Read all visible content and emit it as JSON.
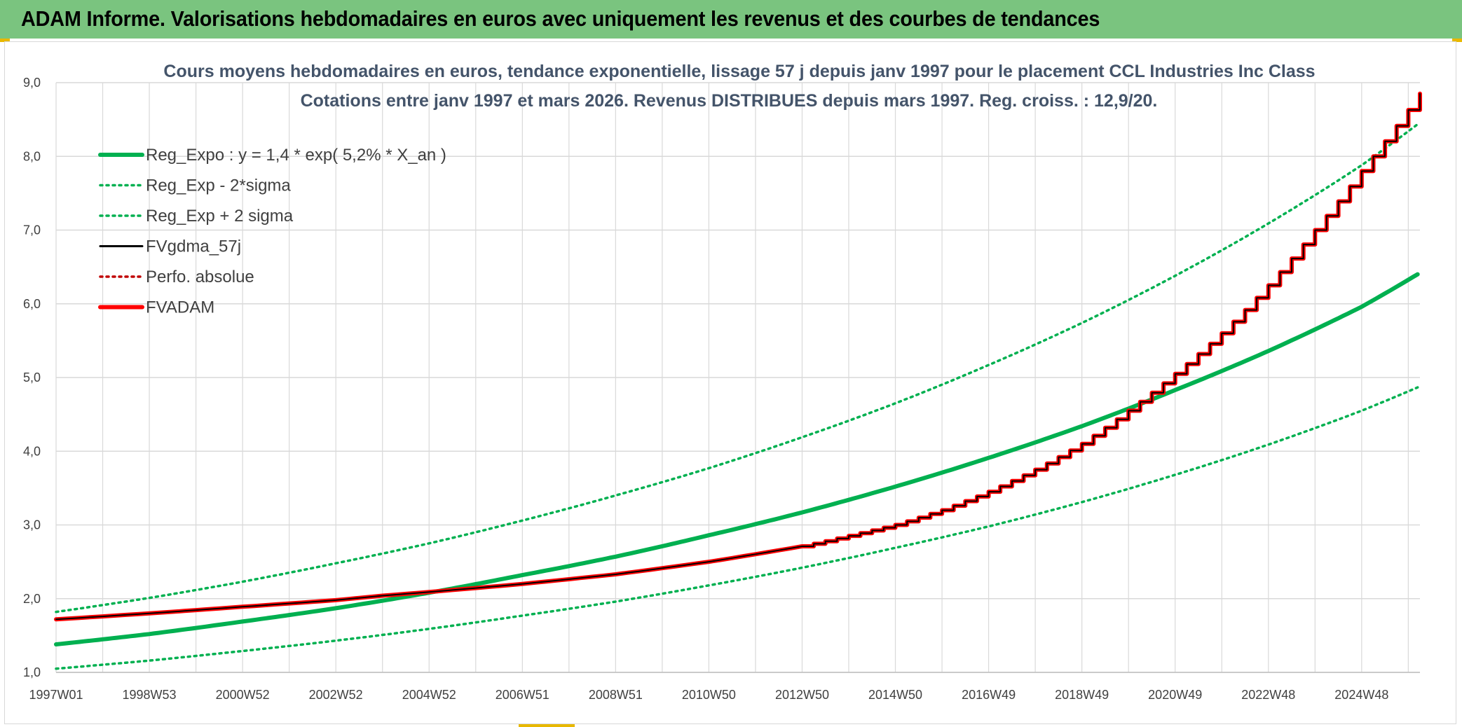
{
  "banner": {
    "title": "ADAM Informe. Valorisations hebdomadaires en euros avec uniquement les revenus et des courbes de tendances"
  },
  "colors": {
    "banner_bg": "#7ac47f",
    "regression": "#00b050",
    "fvadam": "#ff0000",
    "fvgdma": "#000000",
    "grid": "#d9d9d9"
  },
  "chart_data": {
    "type": "line",
    "title_lines": [
      "Cours moyens hebdomadaires en euros, tendance exponentielle, lissage 57 j depuis janv 1997 pour le placement CCL Industries Inc Class",
      "Cotations entre janv 1997 et mars 2026. Revenus DISTRIBUES depuis mars 1997. Reg. croiss. : 12,9/20."
    ],
    "xlabel": "",
    "ylabel": "",
    "ylim": [
      1.0,
      9.0
    ],
    "xlim": [
      1997.0,
      2026.25
    ],
    "yticks": [
      "1,0",
      "2,0",
      "3,0",
      "4,0",
      "5,0",
      "6,0",
      "7,0",
      "8,0",
      "9,0"
    ],
    "xticks": [
      {
        "label": "1997W01",
        "x": 1997.0
      },
      {
        "label": "1998W53",
        "x": 1999.0
      },
      {
        "label": "2000W52",
        "x": 2001.0
      },
      {
        "label": "2002W52",
        "x": 2003.0
      },
      {
        "label": "2004W52",
        "x": 2005.0
      },
      {
        "label": "2006W51",
        "x": 2007.0
      },
      {
        "label": "2008W51",
        "x": 2009.0
      },
      {
        "label": "2010W50",
        "x": 2011.0
      },
      {
        "label": "2012W50",
        "x": 2013.0
      },
      {
        "label": "2014W50",
        "x": 2015.0
      },
      {
        "label": "2016W49",
        "x": 2017.0
      },
      {
        "label": "2018W49",
        "x": 2019.0
      },
      {
        "label": "2020W49",
        "x": 2021.0
      },
      {
        "label": "2022W48",
        "x": 2023.0
      },
      {
        "label": "2024W48",
        "x": 2025.0
      }
    ],
    "grid": true,
    "legend_position": "top-left",
    "legend": [
      {
        "label": "Reg_Expo : y = 1,4 * exp( 5,2% *  X_an )",
        "color": "#00b050",
        "style": "solid-thick"
      },
      {
        "label": "Reg_Exp - 2*sigma",
        "color": "#00b050",
        "style": "dotted"
      },
      {
        "label": "Reg_Exp + 2 sigma",
        "color": "#00b050",
        "style": "dotted"
      },
      {
        "label": "FVgdma_57j",
        "color": "#000000",
        "style": "solid"
      },
      {
        "label": "Perfo. absolue",
        "color": "#c00000",
        "style": "dotted"
      },
      {
        "label": "FVADAM",
        "color": "#ff0000",
        "style": "solid-thick"
      }
    ],
    "series": [
      {
        "name": "Reg_Expo : y = 1,4 * exp( 5,2% *  X_an )",
        "x": [
          1997.0,
          1999.0,
          2001.0,
          2003.0,
          2005.0,
          2007.0,
          2009.0,
          2011.0,
          2013.0,
          2015.0,
          2017.0,
          2019.0,
          2021.0,
          2023.0,
          2025.0,
          2026.25
        ],
        "values": [
          1.38,
          1.52,
          1.69,
          1.87,
          2.08,
          2.32,
          2.57,
          2.86,
          3.17,
          3.52,
          3.91,
          4.34,
          4.83,
          5.36,
          5.96,
          6.42
        ]
      },
      {
        "name": "Reg_Exp - 2*sigma",
        "x": [
          1997.0,
          1999.0,
          2001.0,
          2003.0,
          2005.0,
          2007.0,
          2009.0,
          2011.0,
          2013.0,
          2015.0,
          2017.0,
          2019.0,
          2021.0,
          2023.0,
          2025.0,
          2026.25
        ],
        "values": [
          1.05,
          1.16,
          1.29,
          1.43,
          1.59,
          1.77,
          1.96,
          2.18,
          2.42,
          2.69,
          2.98,
          3.31,
          3.68,
          4.09,
          4.55,
          4.88
        ]
      },
      {
        "name": "Reg_Exp + 2 sigma",
        "x": [
          1997.0,
          1999.0,
          2001.0,
          2003.0,
          2005.0,
          2007.0,
          2009.0,
          2011.0,
          2013.0,
          2015.0,
          2017.0,
          2019.0,
          2021.0,
          2023.0,
          2025.0,
          2026.25
        ],
        "values": [
          1.82,
          2.01,
          2.23,
          2.48,
          2.75,
          3.06,
          3.4,
          3.77,
          4.19,
          4.65,
          5.17,
          5.74,
          6.38,
          7.09,
          7.88,
          8.46
        ]
      },
      {
        "name": "FVADAM",
        "x": [
          1997.0,
          1999.0,
          2001.0,
          2003.0,
          2004.0,
          2005.0,
          2007.0,
          2009.0,
          2011.0,
          2013.0,
          2015.0,
          2016.0,
          2017.0,
          2018.0,
          2019.0,
          2020.0,
          2021.0,
          2022.0,
          2023.0,
          2024.0,
          2025.0,
          2026.25
        ],
        "values": [
          1.72,
          1.8,
          1.89,
          1.98,
          2.04,
          2.09,
          2.2,
          2.33,
          2.5,
          2.71,
          3.0,
          3.2,
          3.45,
          3.75,
          4.1,
          4.55,
          5.05,
          5.6,
          6.25,
          7.0,
          7.8,
          8.85
        ]
      },
      {
        "name": "FVgdma_57j",
        "x": [
          1997.0,
          1999.0,
          2001.0,
          2003.0,
          2004.0,
          2005.0,
          2007.0,
          2009.0,
          2011.0,
          2013.0,
          2015.0,
          2016.0,
          2017.0,
          2018.0,
          2019.0,
          2020.0,
          2021.0,
          2022.0,
          2023.0,
          2024.0,
          2025.0,
          2026.25
        ],
        "values": [
          1.72,
          1.8,
          1.89,
          1.98,
          2.04,
          2.09,
          2.2,
          2.33,
          2.5,
          2.71,
          3.0,
          3.2,
          3.45,
          3.75,
          4.1,
          4.55,
          5.05,
          5.6,
          6.25,
          7.0,
          7.8,
          8.85
        ]
      }
    ]
  }
}
